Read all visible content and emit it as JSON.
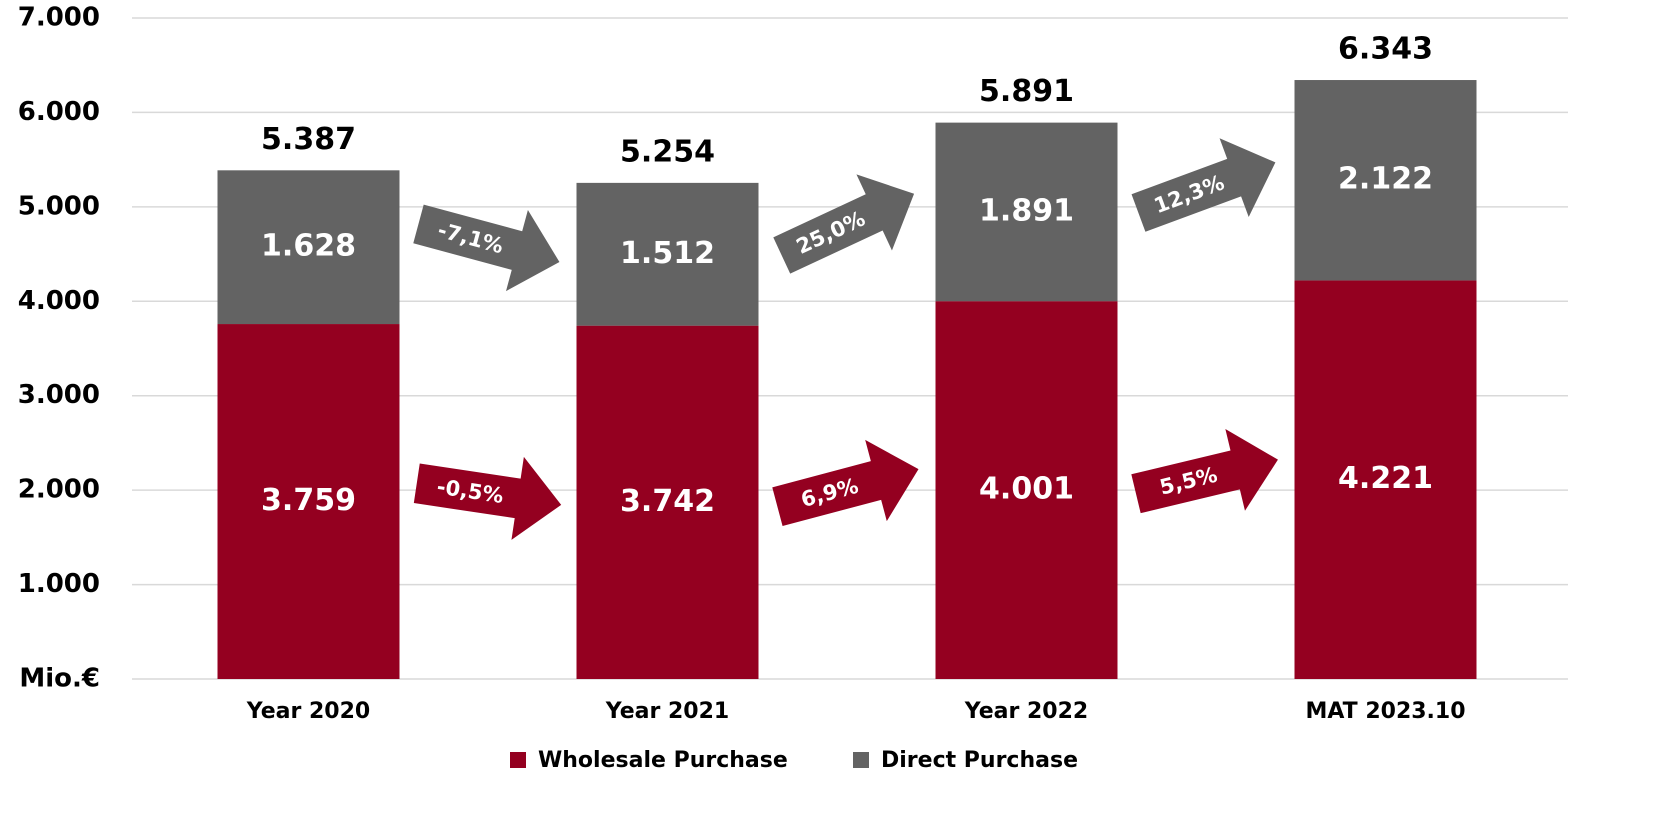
{
  "chart_data": {
    "type": "stacked-bar",
    "categories": [
      "Year 2020",
      "Year 2021",
      "Year 2022",
      "MAT 2023.10"
    ],
    "series": [
      {
        "name": "Wholesale Purchase",
        "color": "#940020",
        "values": [
          3759,
          3742,
          4001,
          4221
        ],
        "value_labels": [
          "3.759",
          "3.742",
          "4.001",
          "4.221"
        ],
        "growth_values": [
          -0.5,
          6.9,
          5.5
        ],
        "growth_labels": [
          "-0,5%",
          "6,9%",
          "5,5%"
        ]
      },
      {
        "name": "Direct Purchase",
        "color": "#636363",
        "values": [
          1628,
          1512,
          1891,
          2122
        ],
        "value_labels": [
          "1.628",
          "1.512",
          "1.891",
          "2.122"
        ],
        "growth_values": [
          -7.1,
          25.0,
          12.3
        ],
        "growth_labels": [
          "-7,1%",
          "25,0%",
          "12,3%"
        ]
      }
    ],
    "totals": {
      "values": [
        5387,
        5254,
        5891,
        6343
      ],
      "value_labels": [
        "5.387",
        "5.254",
        "5.891",
        "6.343"
      ]
    },
    "ylim": [
      0,
      7000
    ],
    "yticks": [
      {
        "value": 0,
        "label": "Mio.€"
      },
      {
        "value": 1000,
        "label": "1.000"
      },
      {
        "value": 2000,
        "label": "2.000"
      },
      {
        "value": 3000,
        "label": "3.000"
      },
      {
        "value": 4000,
        "label": "4.000"
      },
      {
        "value": 5000,
        "label": "5.000"
      },
      {
        "value": 6000,
        "label": "6.000"
      },
      {
        "value": 7000,
        "label": "7.000"
      }
    ],
    "grid": true,
    "legend": "bottom"
  }
}
